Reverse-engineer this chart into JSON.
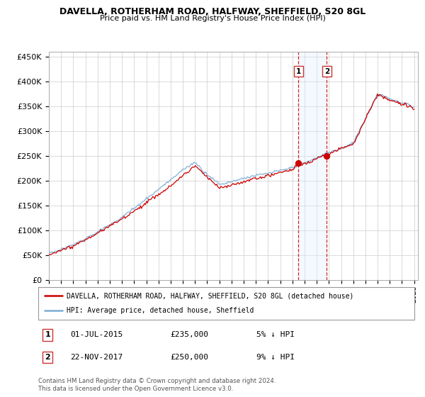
{
  "title": "DAVELLA, ROTHERHAM ROAD, HALFWAY, SHEFFIELD, S20 8GL",
  "subtitle": "Price paid vs. HM Land Registry's House Price Index (HPI)",
  "legend_line1": "DAVELLA, ROTHERHAM ROAD, HALFWAY, SHEFFIELD, S20 8GL (detached house)",
  "legend_line2": "HPI: Average price, detached house, Sheffield",
  "transaction1_date": "01-JUL-2015",
  "transaction1_price": 235000,
  "transaction1_hpi_diff": "5% ↓ HPI",
  "transaction2_date": "22-NOV-2017",
  "transaction2_price": 250000,
  "transaction2_hpi_diff": "9% ↓ HPI",
  "footnote": "Contains HM Land Registry data © Crown copyright and database right 2024.\nThis data is licensed under the Open Government Licence v3.0.",
  "hpi_color": "#7aadd4",
  "price_color": "#cc0000",
  "highlight_color": "#ddeeff",
  "vline_color": "#cc0000",
  "ylim": [
    0,
    460000
  ],
  "yticks": [
    0,
    50000,
    100000,
    150000,
    200000,
    250000,
    300000,
    350000,
    400000,
    450000
  ],
  "xlim_start": 1995,
  "xlim_end": 2025.3
}
